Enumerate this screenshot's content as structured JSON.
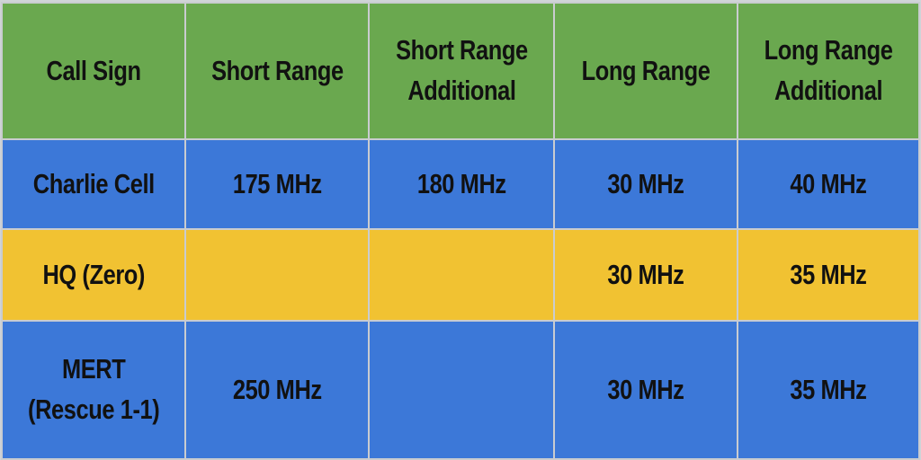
{
  "colors": {
    "header_bg": "#6aa84f",
    "blue_row_bg": "#3c78d8",
    "yellow_row_bg": "#f1c232",
    "border": "#c9ccd0"
  },
  "table": {
    "headers": [
      "Call Sign",
      "Short Range",
      "Short Range\nAdditional",
      "Long Range",
      "Long Range\nAdditional"
    ],
    "rows": [
      {
        "cells": [
          "Charlie Cell",
          "175 MHz",
          "180 MHz",
          "30 MHz",
          "40 MHz"
        ],
        "color": "blue"
      },
      {
        "cells": [
          "HQ (Zero)",
          "",
          "",
          "30 MHz",
          "35 MHz"
        ],
        "color": "yellow"
      },
      {
        "cells": [
          "MERT\n(Rescue 1-1)",
          "250 MHz",
          "",
          "30 MHz",
          "35 MHz"
        ],
        "color": "blue"
      }
    ]
  }
}
